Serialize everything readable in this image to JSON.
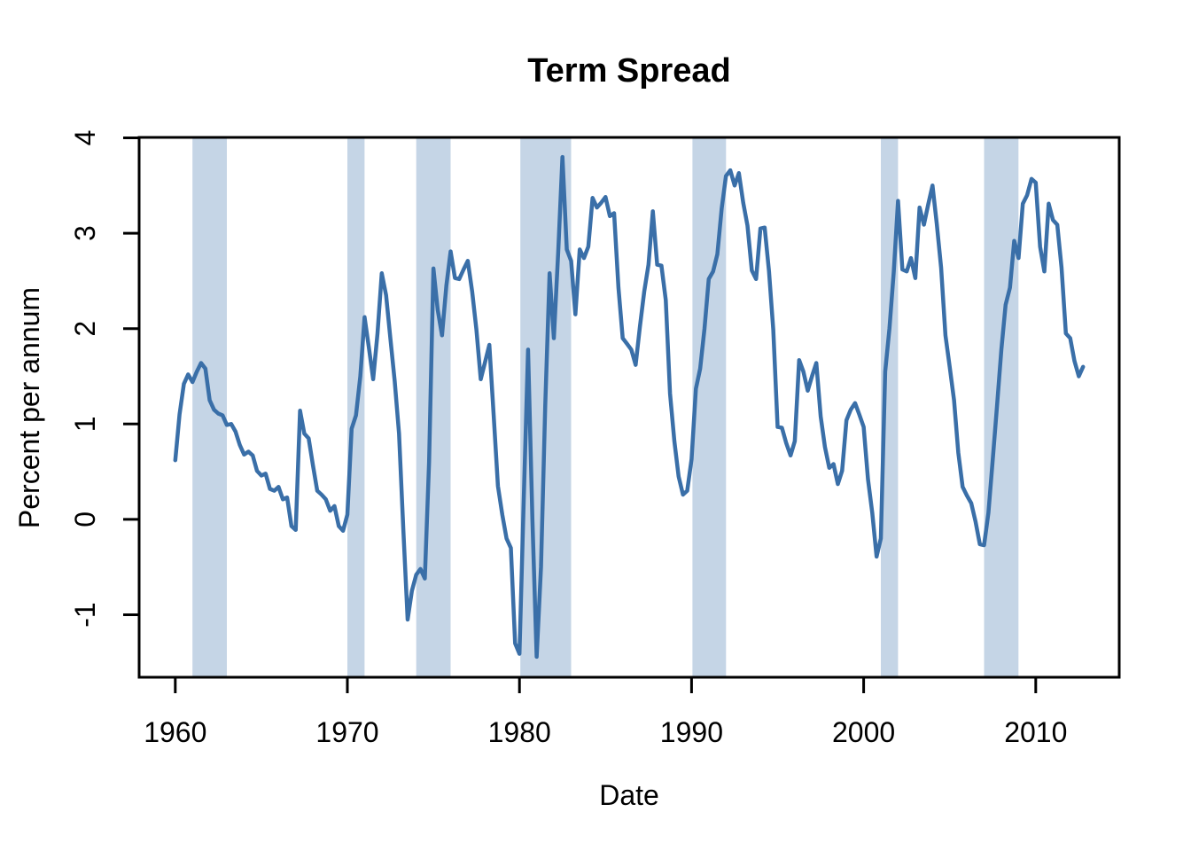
{
  "chart_data": {
    "type": "line",
    "title": "Term Spread",
    "xlabel": "Date",
    "ylabel": "Percent per annum",
    "frequency": "quarterly",
    "x_start": 1960.0,
    "x_step": 0.25,
    "x_end": 2012.75,
    "xlim": [
      1957.9,
      2014.85
    ],
    "ylim": [
      -1.655,
      4.005
    ],
    "x_ticks": [
      1960,
      1970,
      1980,
      1990,
      2000,
      2010
    ],
    "y_ticks": [
      -1,
      0,
      1,
      2,
      3,
      4
    ],
    "grid": false,
    "legend": null,
    "line_color": "#3a6fa8",
    "band_color": "#c5d5e6",
    "box_color": "#000000",
    "recession_bands": [
      [
        1961.0,
        1963.0
      ],
      [
        1970.0,
        1971.0
      ],
      [
        1974.0,
        1976.0
      ],
      [
        1980.05,
        1983.0
      ],
      [
        1990.05,
        1992.0
      ],
      [
        2001.0,
        2002.0
      ],
      [
        2007.0,
        2009.0
      ]
    ],
    "values": [
      0.62,
      1.1,
      1.42,
      1.52,
      1.44,
      1.55,
      1.64,
      1.58,
      1.25,
      1.15,
      1.11,
      1.09,
      0.99,
      1.0,
      0.92,
      0.78,
      0.68,
      0.71,
      0.67,
      0.51,
      0.46,
      0.48,
      0.32,
      0.3,
      0.34,
      0.21,
      0.23,
      -0.07,
      -0.11,
      1.14,
      0.9,
      0.85,
      0.57,
      0.3,
      0.26,
      0.21,
      0.09,
      0.14,
      -0.07,
      -0.12,
      0.05,
      0.95,
      1.09,
      1.5,
      2.12,
      1.8,
      1.47,
      1.95,
      2.58,
      2.35,
      1.9,
      1.45,
      0.9,
      -0.1,
      -1.05,
      -0.75,
      -0.58,
      -0.52,
      -0.62,
      0.6,
      2.63,
      2.2,
      1.93,
      2.45,
      2.81,
      2.53,
      2.52,
      2.62,
      2.71,
      2.39,
      1.99,
      1.47,
      1.65,
      1.83,
      1.09,
      0.35,
      0.05,
      -0.2,
      -0.3,
      -1.3,
      -1.41,
      0.2,
      1.78,
      0.0,
      -1.44,
      -0.5,
      1.2,
      2.58,
      1.9,
      2.8,
      3.8,
      2.83,
      2.71,
      2.15,
      2.83,
      2.74,
      2.86,
      3.37,
      3.27,
      3.32,
      3.38,
      3.18,
      3.21,
      2.43,
      1.9,
      1.84,
      1.78,
      1.62,
      2.02,
      2.39,
      2.67,
      3.23,
      2.67,
      2.66,
      2.3,
      1.32,
      0.82,
      0.45,
      0.26,
      0.3,
      0.63,
      1.37,
      1.58,
      2.0,
      2.52,
      2.6,
      2.78,
      3.26,
      3.6,
      3.66,
      3.5,
      3.63,
      3.32,
      3.08,
      2.61,
      2.52,
      3.05,
      3.06,
      2.6,
      1.99,
      0.97,
      0.96,
      0.8,
      0.67,
      0.82,
      1.67,
      1.55,
      1.35,
      1.5,
      1.64,
      1.08,
      0.76,
      0.54,
      0.58,
      0.37,
      0.51,
      1.04,
      1.15,
      1.22,
      1.1,
      0.97,
      0.42,
      0.07,
      -0.39,
      -0.2,
      1.55,
      2.0,
      2.6,
      3.34,
      2.62,
      2.6,
      2.74,
      2.53,
      3.27,
      3.09,
      3.3,
      3.5,
      3.1,
      2.64,
      1.93,
      1.6,
      1.25,
      0.7,
      0.34,
      0.25,
      0.17,
      -0.02,
      -0.26,
      -0.27,
      0.07,
      0.63,
      1.19,
      1.78,
      2.25,
      2.43,
      2.92,
      2.74,
      3.31,
      3.4,
      3.57,
      3.53,
      2.86,
      2.6,
      3.31,
      3.14,
      3.09,
      2.64,
      1.95,
      1.9,
      1.66,
      1.5,
      1.6
    ]
  }
}
